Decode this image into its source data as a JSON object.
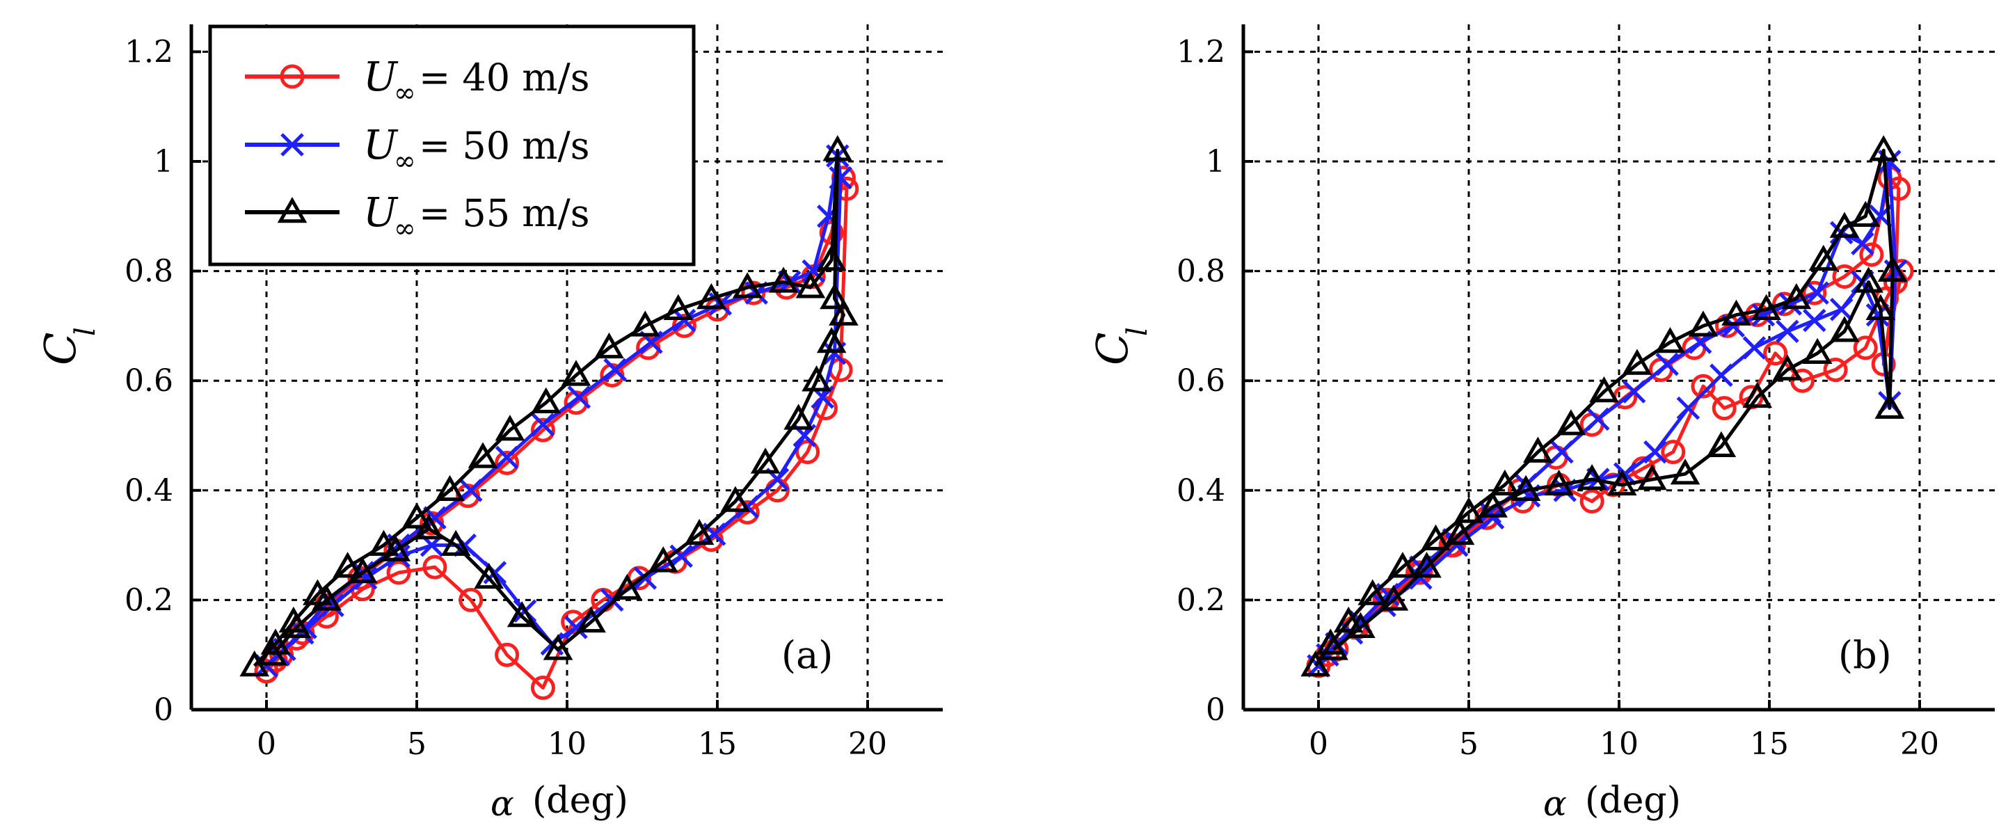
{
  "figure": {
    "legend": {
      "entries": [
        {
          "symbol": "U",
          "subscript": "∞",
          "text": "= 40 m/s",
          "color": "#ff1f1f",
          "marker": "circle"
        },
        {
          "symbol": "U",
          "subscript": "∞",
          "text": "= 50 m/s",
          "color": "#1f1fff",
          "marker": "x"
        },
        {
          "symbol": "U",
          "subscript": "∞",
          "text": "= 55 m/s",
          "color": "#000000",
          "marker": "triangle"
        }
      ]
    }
  },
  "chart_data": [
    {
      "type": "line",
      "panel_label": "(a)",
      "xlabel_symbol": "α",
      "xlabel_unit": "(deg)",
      "ylabel_symbol": "C",
      "ylabel_sub": "l",
      "xlim": [
        -2.5,
        22.5
      ],
      "ylim": [
        0,
        1.25
      ],
      "xticks": [
        "0",
        "5",
        "10",
        "15",
        "20"
      ],
      "yticks": [
        "0",
        "0.2",
        "0.4",
        "0.6",
        "0.8",
        "1",
        "1.2"
      ],
      "grid": true,
      "legend_position": "top-left",
      "series": [
        {
          "name": "U∞ = 40 m/s",
          "color": "#ff1f1f",
          "marker": "circle",
          "x": [
            0.0,
            0.5,
            1.2,
            2.0,
            3.1,
            4.3,
            5.5,
            6.7,
            8.0,
            9.2,
            10.3,
            11.5,
            12.7,
            13.9,
            15.0,
            16.2,
            17.3,
            18.2,
            18.8,
            19.2,
            19.3,
            19.1,
            18.6,
            18.0,
            17.0,
            16.0,
            14.8,
            13.6,
            12.4,
            11.2,
            10.2,
            9.2,
            8.0,
            6.8,
            5.6,
            4.4,
            3.2,
            2.0,
            1.0,
            0.3,
            0.0
          ],
          "y": [
            0.07,
            0.1,
            0.14,
            0.19,
            0.24,
            0.29,
            0.34,
            0.39,
            0.45,
            0.51,
            0.56,
            0.61,
            0.66,
            0.7,
            0.73,
            0.76,
            0.77,
            0.79,
            0.87,
            0.97,
            0.95,
            0.62,
            0.55,
            0.47,
            0.4,
            0.36,
            0.31,
            0.27,
            0.24,
            0.2,
            0.16,
            0.04,
            0.1,
            0.2,
            0.26,
            0.25,
            0.22,
            0.17,
            0.13,
            0.09,
            0.07
          ]
        },
        {
          "name": "U∞ = 50 m/s",
          "color": "#1f1fff",
          "marker": "x",
          "x": [
            0.0,
            0.6,
            1.3,
            2.1,
            3.2,
            4.4,
            5.6,
            6.8,
            8.0,
            9.2,
            10.4,
            11.6,
            12.8,
            13.9,
            15.1,
            16.3,
            17.4,
            18.2,
            18.7,
            19.0,
            19.1,
            18.9,
            18.5,
            17.9,
            17.0,
            16.0,
            14.9,
            13.8,
            12.6,
            11.5,
            10.3,
            9.5,
            8.6,
            7.6,
            6.6,
            5.5,
            4.4,
            3.3,
            2.2,
            1.2,
            0.4
          ],
          "y": [
            0.08,
            0.11,
            0.15,
            0.2,
            0.25,
            0.3,
            0.35,
            0.4,
            0.46,
            0.52,
            0.57,
            0.62,
            0.67,
            0.71,
            0.74,
            0.76,
            0.78,
            0.8,
            0.9,
            1.01,
            0.97,
            0.65,
            0.57,
            0.5,
            0.42,
            0.37,
            0.32,
            0.28,
            0.24,
            0.2,
            0.15,
            0.12,
            0.18,
            0.25,
            0.3,
            0.3,
            0.28,
            0.24,
            0.19,
            0.14,
            0.1
          ]
        },
        {
          "name": "U∞ = 55 m/s",
          "color": "#000000",
          "marker": "triangle",
          "x": [
            -0.4,
            0.3,
            0.9,
            1.7,
            2.7,
            3.9,
            5.0,
            6.1,
            7.2,
            8.1,
            9.3,
            10.3,
            11.4,
            12.6,
            13.7,
            14.8,
            16.0,
            17.2,
            18.1,
            18.8,
            19.0,
            18.9,
            19.2,
            18.8,
            18.3,
            17.7,
            16.6,
            15.6,
            14.4,
            13.2,
            12.0,
            10.8,
            9.7,
            8.5,
            7.4,
            6.3,
            5.4,
            4.3,
            3.2,
            2.0,
            1.0,
            0.2
          ],
          "y": [
            0.08,
            0.12,
            0.16,
            0.21,
            0.26,
            0.3,
            0.35,
            0.4,
            0.46,
            0.51,
            0.56,
            0.61,
            0.66,
            0.7,
            0.73,
            0.75,
            0.77,
            0.78,
            0.77,
            0.82,
            1.02,
            0.75,
            0.72,
            0.67,
            0.6,
            0.53,
            0.45,
            0.38,
            0.32,
            0.27,
            0.22,
            0.16,
            0.11,
            0.17,
            0.24,
            0.3,
            0.33,
            0.29,
            0.25,
            0.2,
            0.15,
            0.1
          ]
        }
      ]
    },
    {
      "type": "line",
      "panel_label": "(b)",
      "xlabel_symbol": "α",
      "xlabel_unit": "(deg)",
      "ylabel_symbol": "C",
      "ylabel_sub": "l",
      "xlim": [
        -2.5,
        22.5
      ],
      "ylim": [
        0,
        1.25
      ],
      "xticks": [
        "0",
        "5",
        "10",
        "15",
        "20"
      ],
      "yticks": [
        "0",
        "0.2",
        "0.4",
        "0.6",
        "0.8",
        "1",
        "1.2"
      ],
      "grid": true,
      "legend_position": "none",
      "series": [
        {
          "name": "U∞ = 40 m/s",
          "color": "#ff1f1f",
          "marker": "circle",
          "x": [
            0.0,
            0.6,
            1.3,
            2.2,
            3.3,
            4.4,
            5.6,
            6.7,
            7.9,
            9.1,
            10.2,
            11.4,
            12.5,
            13.6,
            14.6,
            15.5,
            16.5,
            17.5,
            18.4,
            19.0,
            19.3,
            19.2,
            18.8,
            19.4,
            18.9,
            18.2,
            17.2,
            16.1,
            15.2,
            14.4,
            13.5,
            12.8,
            11.8,
            10.8,
            9.8,
            9.1,
            8.0,
            6.8,
            5.6,
            4.5,
            3.4,
            2.3,
            1.2,
            0.3
          ],
          "y": [
            0.08,
            0.11,
            0.15,
            0.2,
            0.25,
            0.3,
            0.35,
            0.4,
            0.46,
            0.52,
            0.57,
            0.62,
            0.66,
            0.7,
            0.72,
            0.74,
            0.76,
            0.79,
            0.83,
            0.97,
            0.95,
            0.78,
            0.63,
            0.8,
            0.75,
            0.66,
            0.62,
            0.6,
            0.65,
            0.57,
            0.55,
            0.59,
            0.47,
            0.44,
            0.41,
            0.38,
            0.41,
            0.38,
            0.35,
            0.3,
            0.25,
            0.2,
            0.15,
            0.1
          ]
        },
        {
          "name": "U∞ = 50 m/s",
          "color": "#1f1fff",
          "marker": "x",
          "x": [
            0.0,
            0.6,
            1.4,
            2.3,
            3.4,
            4.5,
            5.7,
            6.9,
            8.1,
            9.3,
            10.5,
            11.6,
            12.7,
            13.8,
            14.8,
            15.7,
            16.6,
            17.4,
            18.1,
            18.7,
            19.0,
            19.2,
            19.0,
            18.6,
            18.1,
            17.4,
            16.5,
            15.6,
            14.5,
            13.4,
            12.3,
            11.2,
            10.2,
            9.3,
            8.2,
            7.0,
            5.8,
            4.6,
            3.4,
            2.2,
            1.1,
            0.3
          ],
          "y": [
            0.08,
            0.12,
            0.16,
            0.21,
            0.26,
            0.31,
            0.36,
            0.41,
            0.47,
            0.53,
            0.58,
            0.63,
            0.67,
            0.7,
            0.72,
            0.74,
            0.76,
            0.87,
            0.85,
            0.9,
            1.0,
            0.8,
            0.56,
            0.72,
            0.78,
            0.73,
            0.71,
            0.69,
            0.66,
            0.61,
            0.55,
            0.47,
            0.43,
            0.42,
            0.4,
            0.39,
            0.35,
            0.3,
            0.24,
            0.19,
            0.14,
            0.1
          ]
        },
        {
          "name": "U∞ = 55 m/s",
          "color": "#000000",
          "marker": "triangle",
          "x": [
            -0.1,
            0.4,
            1.0,
            1.8,
            2.8,
            3.9,
            5.0,
            6.2,
            7.3,
            8.4,
            9.5,
            10.6,
            11.7,
            12.8,
            13.9,
            14.9,
            15.9,
            16.8,
            17.5,
            18.2,
            18.8,
            19.1,
            19.0,
            18.7,
            18.3,
            17.5,
            16.6,
            15.6,
            14.6,
            13.4,
            12.2,
            11.1,
            10.1,
            9.1,
            8.0,
            6.9,
            5.8,
            4.7,
            3.6,
            2.5,
            1.4,
            0.5
          ],
          "y": [
            0.08,
            0.12,
            0.16,
            0.21,
            0.26,
            0.31,
            0.36,
            0.41,
            0.47,
            0.52,
            0.58,
            0.63,
            0.67,
            0.7,
            0.72,
            0.73,
            0.75,
            0.82,
            0.88,
            0.9,
            1.02,
            0.8,
            0.55,
            0.73,
            0.78,
            0.69,
            0.65,
            0.62,
            0.57,
            0.48,
            0.43,
            0.42,
            0.41,
            0.42,
            0.41,
            0.4,
            0.37,
            0.32,
            0.26,
            0.2,
            0.15,
            0.11
          ]
        }
      ]
    }
  ]
}
